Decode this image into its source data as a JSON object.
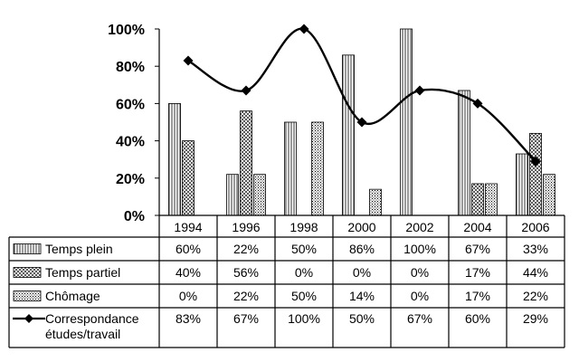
{
  "chart_data": {
    "type": "bar",
    "categories": [
      "1994",
      "1996",
      "1998",
      "2000",
      "2002",
      "2004",
      "2006"
    ],
    "ylim": [
      0,
      100
    ],
    "y_ticks": [
      "0%",
      "20%",
      "40%",
      "60%",
      "80%",
      "100%"
    ],
    "grid": false,
    "legend_placement": "data-table-left",
    "series": [
      {
        "name": "Temps plein",
        "kind": "bar",
        "pattern": "vertical-lines",
        "values": [
          60,
          22,
          50,
          86,
          100,
          67,
          33
        ],
        "labels": [
          "60%",
          "22%",
          "50%",
          "86%",
          "100%",
          "67%",
          "33%"
        ]
      },
      {
        "name": "Temps partiel",
        "kind": "bar",
        "pattern": "crosshatch",
        "values": [
          40,
          56,
          0,
          0,
          0,
          17,
          44
        ],
        "labels": [
          "40%",
          "56%",
          "0%",
          "0%",
          "0%",
          "17%",
          "44%"
        ]
      },
      {
        "name": "Chômage",
        "kind": "bar",
        "pattern": "dots",
        "values": [
          0,
          22,
          50,
          14,
          0,
          17,
          22
        ],
        "labels": [
          "0%",
          "22%",
          "50%",
          "14%",
          "0%",
          "17%",
          "22%"
        ]
      },
      {
        "name": "Correspondance\nétudes/travail",
        "kind": "line",
        "marker": "diamond",
        "values": [
          83,
          67,
          100,
          50,
          67,
          60,
          29
        ],
        "labels": [
          "83%",
          "67%",
          "100%",
          "50%",
          "67%",
          "60%",
          "29%"
        ]
      }
    ]
  }
}
